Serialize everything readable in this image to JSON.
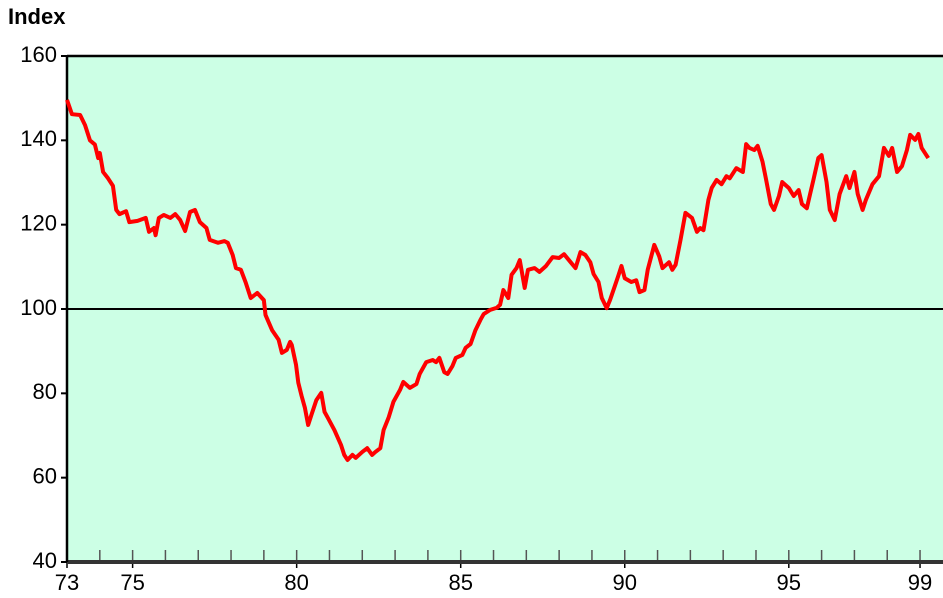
{
  "chart_data": {
    "type": "line",
    "ylabel": "Index",
    "x": [
      73.0,
      73.15,
      73.4,
      73.55,
      73.7,
      73.85,
      73.95,
      74.0,
      74.1,
      74.25,
      74.4,
      74.5,
      74.6,
      74.8,
      74.9,
      75.15,
      75.4,
      75.5,
      75.65,
      75.7,
      75.8,
      75.95,
      76.15,
      76.3,
      76.45,
      76.6,
      76.75,
      76.9,
      77.05,
      77.25,
      77.35,
      77.6,
      77.8,
      77.9,
      78.05,
      78.15,
      78.3,
      78.45,
      78.6,
      78.8,
      79.0,
      79.05,
      79.25,
      79.45,
      79.55,
      79.7,
      79.8,
      79.85,
      79.98,
      80.05,
      80.15,
      80.25,
      80.35,
      80.45,
      80.6,
      80.75,
      80.85,
      80.95,
      81.15,
      81.35,
      81.45,
      81.55,
      81.7,
      81.8,
      82.0,
      82.15,
      82.3,
      82.4,
      82.55,
      82.65,
      82.8,
      82.95,
      83.15,
      83.25,
      83.45,
      83.65,
      83.75,
      83.95,
      84.15,
      84.25,
      84.35,
      84.5,
      84.6,
      84.75,
      84.85,
      85.05,
      85.15,
      85.3,
      85.45,
      85.6,
      85.7,
      85.9,
      86.1,
      86.2,
      86.3,
      86.45,
      86.55,
      86.7,
      86.8,
      86.95,
      87.05,
      87.25,
      87.4,
      87.6,
      87.8,
      88.0,
      88.15,
      88.35,
      88.5,
      88.65,
      88.8,
      88.95,
      89.05,
      89.2,
      89.3,
      89.45,
      89.55,
      89.7,
      89.8,
      89.9,
      90.0,
      90.2,
      90.35,
      90.45,
      90.6,
      90.7,
      90.9,
      91.05,
      91.15,
      91.35,
      91.45,
      91.55,
      91.7,
      91.85,
      92.05,
      92.2,
      92.3,
      92.4,
      92.55,
      92.65,
      92.8,
      92.95,
      93.1,
      93.2,
      93.4,
      93.6,
      93.7,
      93.8,
      93.95,
      94.05,
      94.2,
      94.3,
      94.45,
      94.55,
      94.7,
      94.8,
      95.0,
      95.15,
      95.3,
      95.4,
      95.55,
      95.65,
      95.75,
      95.9,
      96.0,
      96.15,
      96.25,
      96.4,
      96.55,
      96.75,
      96.85,
      97.0,
      97.1,
      97.25,
      97.35,
      97.55,
      97.75,
      97.9,
      98.05,
      98.15,
      98.3,
      98.45,
      98.6,
      98.7,
      98.85,
      98.95,
      99.05,
      99.25
    ],
    "series": [
      {
        "name": "Index",
        "color": "#ff0000",
        "values": [
          149.6,
          146.2,
          146,
          143.6,
          140,
          139,
          135.8,
          137,
          132.5,
          131,
          129.2,
          123.5,
          122.5,
          123.2,
          120.6,
          120.9,
          121.6,
          118.3,
          119.2,
          117.5,
          121.6,
          122.3,
          121.6,
          122.5,
          121.1,
          118.5,
          123,
          123.5,
          120.6,
          119.2,
          116.4,
          115.7,
          116.1,
          115.7,
          112.8,
          109.7,
          109.3,
          106.2,
          102.6,
          103.8,
          102.1,
          98.6,
          95,
          92.7,
          89.6,
          90.3,
          92.2,
          91.5,
          86.8,
          82.5,
          79.4,
          76.6,
          72.5,
          74.9,
          78.4,
          80.1,
          75.6,
          74.2,
          71.3,
          67.8,
          65.4,
          64.2,
          65.4,
          64.7,
          66.1,
          67,
          65.4,
          66.1,
          67,
          71.3,
          74.2,
          78,
          80.8,
          82.7,
          81.3,
          82.2,
          84.6,
          87.4,
          87.9,
          87.4,
          88.4,
          85,
          84.6,
          86.5,
          88.4,
          89.1,
          90.8,
          91.7,
          95,
          97.4,
          98.8,
          99.8,
          100.3,
          101,
          104.5,
          102.6,
          108.1,
          109.7,
          111.6,
          105,
          109.3,
          109.7,
          108.8,
          110.2,
          112.3,
          112.1,
          113,
          111.1,
          109.7,
          113.5,
          112.8,
          111.1,
          108.3,
          106.4,
          102.6,
          100.2,
          102.1,
          105.5,
          107.8,
          110.2,
          107.3,
          106.4,
          106.8,
          104,
          104.5,
          109.3,
          115.2,
          112.5,
          109.7,
          111.1,
          109.3,
          110.5,
          116.4,
          122.8,
          121.6,
          118.3,
          119.2,
          118.7,
          125.9,
          128.7,
          130.6,
          129.6,
          131.5,
          131,
          133.4,
          132.5,
          139.1,
          138.2,
          137.7,
          138.7,
          134.9,
          131,
          124.9,
          123.5,
          126.8,
          130.1,
          128.7,
          126.8,
          128.2,
          124.9,
          123.9,
          127.3,
          130.6,
          135.8,
          136.5,
          130.1,
          123.5,
          121.1,
          127.3,
          131.5,
          128.7,
          132.5,
          127.3,
          123.5,
          125.9,
          129.6,
          131.5,
          138.2,
          136.3,
          138.2,
          132.5,
          133.9,
          137.7,
          141.3,
          140.1,
          141.5,
          138.2,
          135.8
        ]
      }
    ],
    "xlim": [
      73,
      99.7
    ],
    "xticks": [
      73,
      75,
      80,
      85,
      90,
      95,
      99
    ],
    "xminorticks": [
      74,
      75,
      76,
      77,
      78,
      79,
      80,
      81,
      82,
      83,
      84,
      85,
      86,
      87,
      88,
      89,
      90,
      91,
      92,
      93,
      94,
      95,
      96,
      97,
      98,
      99
    ],
    "ylim": [
      40,
      160
    ],
    "yticks": [
      40,
      60,
      80,
      100,
      120,
      140,
      160
    ],
    "hline": 100,
    "background": "#ccffe5"
  }
}
